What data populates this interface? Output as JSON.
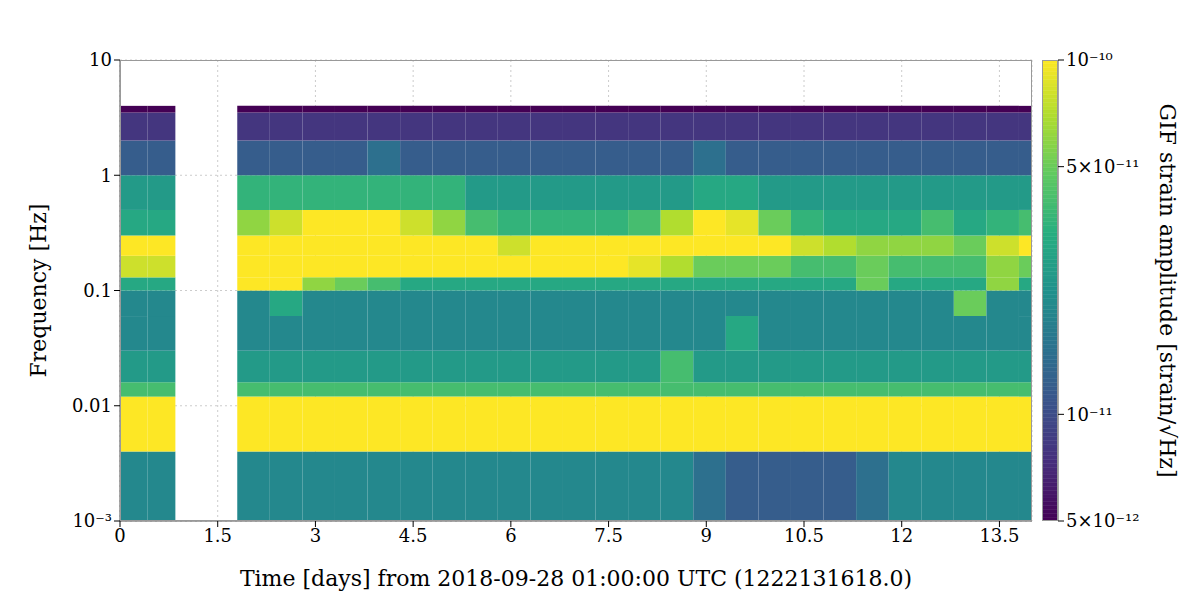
{
  "chart_data": {
    "type": "heatmap",
    "x_label": "Time [days] from 2018-09-28 01:00:00 UTC (1222131618.0)",
    "y_label": "Frequency [Hz]",
    "xlim": [
      0,
      14
    ],
    "ylim": [
      0.001,
      10
    ],
    "xticks": [
      0,
      1.5,
      3,
      4.5,
      6,
      7.5,
      9,
      10.5,
      12,
      13.5
    ],
    "yticks": [
      {
        "value": 0.001,
        "label": "10⁻³"
      },
      0.01,
      0.1,
      1,
      10
    ],
    "log": "y",
    "grid": true,
    "cells": {
      "x_edges": [
        0,
        0.425,
        0.85,
        1.8,
        2.3,
        2.8,
        3.3,
        3.8,
        4.3,
        4.8,
        5.3,
        5.8,
        6.3,
        6.8,
        7.3,
        7.8,
        8.3,
        8.8,
        9.3,
        9.8,
        10.3,
        10.8,
        11.3,
        11.8,
        12.3,
        12.8,
        13.3,
        13.8,
        14
      ],
      "y_edges": [
        0.001,
        0.004,
        0.012,
        0.016,
        0.03,
        0.06,
        0.1,
        0.13,
        0.2,
        0.3,
        0.5,
        1,
        2,
        3.5,
        4
      ],
      "values": [
        [
          2e-11,
          2e-11,
          null,
          2e-11,
          2e-11,
          2e-11,
          2e-11,
          2e-11,
          2e-11,
          2e-11,
          2e-11,
          2e-11,
          2e-11,
          2e-11,
          2e-11,
          2e-11,
          2e-11,
          1.5e-11,
          1.2e-11,
          1.2e-11,
          1.2e-11,
          1.2e-11,
          1.5e-11,
          2e-11,
          2e-11,
          2e-11,
          2e-11,
          2e-11
        ],
        [
          1e-10,
          1e-10,
          null,
          1e-10,
          1e-10,
          1e-10,
          1e-10,
          1e-10,
          1e-10,
          1e-10,
          1e-10,
          1e-10,
          1e-10,
          1e-10,
          1e-10,
          1e-10,
          1e-10,
          1e-10,
          1e-10,
          1e-10,
          1e-10,
          1e-10,
          1e-10,
          1e-10,
          1e-10,
          1e-10,
          1e-10,
          1e-10
        ],
        [
          4e-11,
          4e-11,
          null,
          4e-11,
          4e-11,
          4e-11,
          4e-11,
          4e-11,
          4e-11,
          4e-11,
          4e-11,
          4e-11,
          4e-11,
          4e-11,
          4e-11,
          4e-11,
          4e-11,
          4e-11,
          4e-11,
          4e-11,
          4e-11,
          4e-11,
          4e-11,
          4e-11,
          4e-11,
          4e-11,
          4e-11,
          4e-11
        ],
        [
          2.5e-11,
          2.5e-11,
          null,
          2.5e-11,
          2.5e-11,
          2.5e-11,
          2.5e-11,
          2.5e-11,
          2.5e-11,
          2.5e-11,
          2.5e-11,
          2.5e-11,
          2.5e-11,
          2.5e-11,
          2.5e-11,
          2.5e-11,
          4e-11,
          2.5e-11,
          2.5e-11,
          2.5e-11,
          2.5e-11,
          2.5e-11,
          2.5e-11,
          2.5e-11,
          2.5e-11,
          2.5e-11,
          2.5e-11,
          2.5e-11
        ],
        [
          2e-11,
          2e-11,
          null,
          2e-11,
          2e-11,
          2e-11,
          2e-11,
          2e-11,
          2e-11,
          2e-11,
          2e-11,
          2e-11,
          2e-11,
          2e-11,
          2e-11,
          2e-11,
          2e-11,
          2e-11,
          3e-11,
          2e-11,
          2e-11,
          2e-11,
          2e-11,
          2e-11,
          2e-11,
          2e-11,
          2e-11,
          2e-11
        ],
        [
          2e-11,
          2e-11,
          null,
          2e-11,
          3e-11,
          2e-11,
          2e-11,
          2e-11,
          2e-11,
          2e-11,
          2e-11,
          2e-11,
          2e-11,
          2e-11,
          2e-11,
          2e-11,
          2e-11,
          2e-11,
          2e-11,
          2e-11,
          2e-11,
          2e-11,
          2e-11,
          2e-11,
          2e-11,
          5e-11,
          2e-11,
          2e-11
        ],
        [
          3e-11,
          3e-11,
          null,
          1e-10,
          1e-10,
          6e-11,
          5e-11,
          4e-11,
          3e-11,
          3e-11,
          3e-11,
          3e-11,
          3e-11,
          3e-11,
          3e-11,
          3e-11,
          3e-11,
          3e-11,
          3e-11,
          3e-11,
          3e-11,
          3e-11,
          5e-11,
          3e-11,
          3e-11,
          3e-11,
          6e-11,
          3e-11
        ],
        [
          8e-11,
          8e-11,
          null,
          1e-10,
          1e-10,
          1e-10,
          1e-10,
          1e-10,
          1e-10,
          1e-10,
          1e-10,
          1e-10,
          1e-10,
          1e-10,
          1e-10,
          9e-11,
          7e-11,
          5e-11,
          5e-11,
          5e-11,
          4e-11,
          4e-11,
          5e-11,
          4e-11,
          4e-11,
          4e-11,
          6e-11,
          5e-11
        ],
        [
          1e-10,
          1e-10,
          null,
          1e-10,
          1e-10,
          1e-10,
          1e-10,
          1e-10,
          1e-10,
          1e-10,
          1e-10,
          8e-11,
          1e-10,
          1e-10,
          1e-10,
          1e-10,
          1e-10,
          1e-10,
          1e-10,
          1e-10,
          8e-11,
          7e-11,
          6e-11,
          6e-11,
          6e-11,
          5e-11,
          8e-11,
          1e-10
        ],
        [
          3e-11,
          3e-11,
          null,
          6e-11,
          8e-11,
          1e-10,
          1e-10,
          1e-10,
          8e-11,
          6e-11,
          4e-11,
          3.5e-11,
          3.5e-11,
          3.5e-11,
          3.5e-11,
          4e-11,
          7e-11,
          1e-10,
          9e-11,
          5e-11,
          3.5e-11,
          3e-11,
          3e-11,
          3e-11,
          4e-11,
          3e-11,
          3.5e-11,
          4e-11
        ],
        [
          2.5e-11,
          2.5e-11,
          null,
          3.5e-11,
          3.5e-11,
          3.5e-11,
          3.5e-11,
          3.5e-11,
          3.5e-11,
          3.5e-11,
          2.5e-11,
          2.5e-11,
          2.5e-11,
          2.5e-11,
          2.5e-11,
          2.5e-11,
          2.5e-11,
          3e-11,
          3e-11,
          2.5e-11,
          2.5e-11,
          2.5e-11,
          2.5e-11,
          2.5e-11,
          2.5e-11,
          2.5e-11,
          2.5e-11,
          2.5e-11
        ],
        [
          1.2e-11,
          1.2e-11,
          null,
          1.2e-11,
          1.2e-11,
          1.2e-11,
          1.2e-11,
          1.5e-11,
          1.2e-11,
          1.2e-11,
          1.2e-11,
          1.2e-11,
          1.2e-11,
          1.2e-11,
          1.2e-11,
          1.2e-11,
          1.2e-11,
          1.5e-11,
          1.2e-11,
          1.2e-11,
          1.2e-11,
          1.2e-11,
          1.2e-11,
          1.2e-11,
          1.2e-11,
          1.2e-11,
          1.2e-11,
          1.2e-11
        ],
        [
          8e-12,
          8e-12,
          null,
          8e-12,
          8e-12,
          8e-12,
          8e-12,
          8e-12,
          8e-12,
          8e-12,
          8e-12,
          8e-12,
          8e-12,
          8e-12,
          8e-12,
          8e-12,
          8e-12,
          8e-12,
          8e-12,
          8e-12,
          8e-12,
          8e-12,
          8e-12,
          8e-12,
          8e-12,
          8e-12,
          8e-12,
          8e-12
        ],
        [
          5e-12,
          5e-12,
          null,
          5e-12,
          5e-12,
          5e-12,
          5e-12,
          5e-12,
          5e-12,
          5e-12,
          5e-12,
          5e-12,
          5e-12,
          5e-12,
          5e-12,
          5e-12,
          5e-12,
          5e-12,
          5e-12,
          5e-12,
          5e-12,
          5e-12,
          5e-12,
          5e-12,
          5e-12,
          5e-12,
          5e-12,
          5e-12
        ]
      ]
    },
    "colorbar": {
      "label": "GIF strain amplitude [strain/√Hz]",
      "range": [
        5e-12,
        1e-10
      ],
      "ticks": [
        {
          "value": 1e-10,
          "label": "10⁻¹⁰"
        },
        {
          "value": 5e-11,
          "label": "5×10⁻¹¹"
        },
        {
          "value": 1e-11,
          "label": "10⁻¹¹"
        },
        {
          "value": 5e-12,
          "label": "5×10⁻¹²"
        }
      ],
      "log": true
    }
  }
}
